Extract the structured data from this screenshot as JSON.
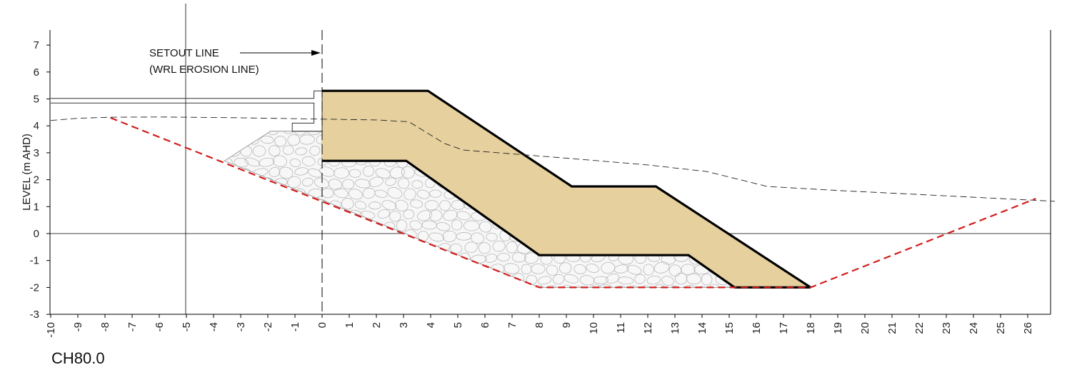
{
  "chart_data": {
    "type": "diagram",
    "section_label": "CH80.0",
    "ylabel": "LEVEL (m AHD)",
    "xlabel": "",
    "xlim": [
      -10,
      27
    ],
    "ylim": [
      -3,
      7.5
    ],
    "x_ticks": [
      -10,
      -9,
      -8,
      -7,
      -6,
      -5,
      -4,
      -3,
      -2,
      -1,
      0,
      1,
      2,
      3,
      4,
      5,
      6,
      7,
      8,
      9,
      10,
      11,
      12,
      13,
      14,
      15,
      16,
      17,
      18,
      19,
      20,
      21,
      22,
      23,
      24,
      25,
      26
    ],
    "y_ticks": [
      -3,
      -2,
      -1,
      0,
      1,
      2,
      3,
      4,
      5,
      6,
      7
    ],
    "annotations": {
      "setout_line": "SETOUT LINE",
      "erosion_line": "(WRL EROSION LINE)",
      "setout_x": 0
    },
    "reference_lines": {
      "horizontal_y": 0,
      "vertical_x": [
        -5,
        0
      ]
    },
    "colors": {
      "sand_fill": "#e6d09e",
      "rock_fill": "#f7f7f7",
      "excavation_line": "#d21e1e",
      "outline": "#000000"
    },
    "sand_layer": [
      [
        0,
        5.3
      ],
      [
        3.9,
        5.3
      ],
      [
        9.2,
        1.75
      ],
      [
        12.3,
        1.75
      ],
      [
        18,
        -2
      ],
      [
        15.2,
        -2
      ],
      [
        13.5,
        -0.8
      ],
      [
        8,
        -0.8
      ],
      [
        3.1,
        2.7
      ],
      [
        0,
        2.7
      ]
    ],
    "rock_layer": [
      [
        -3.6,
        2.7
      ],
      [
        -1.9,
        3.8
      ],
      [
        0,
        3.8
      ],
      [
        0,
        2.7
      ],
      [
        3.1,
        2.7
      ],
      [
        8,
        -0.8
      ],
      [
        13.5,
        -0.8
      ],
      [
        15.2,
        -2
      ],
      [
        8,
        -2
      ]
    ],
    "excavation_profile": [
      [
        -7.8,
        4.3
      ],
      [
        8,
        -2
      ],
      [
        18,
        -2
      ],
      [
        26.3,
        1.3
      ]
    ],
    "existing_ground_profile": [
      [
        -10,
        4.2
      ],
      [
        -9,
        4.28
      ],
      [
        -7.8,
        4.32
      ],
      [
        -6,
        4.33
      ],
      [
        -5,
        4.32
      ],
      [
        -3,
        4.3
      ],
      [
        0,
        4.25
      ],
      [
        2,
        4.22
      ],
      [
        3.2,
        4.15
      ],
      [
        4.5,
        3.35
      ],
      [
        5.2,
        3.1
      ],
      [
        6.5,
        3.0
      ],
      [
        9,
        2.8
      ],
      [
        12,
        2.55
      ],
      [
        14.2,
        2.3
      ],
      [
        16.4,
        1.75
      ],
      [
        19,
        1.6
      ],
      [
        22,
        1.45
      ],
      [
        25,
        1.3
      ],
      [
        27,
        1.2
      ]
    ],
    "seawall_outline": [
      [
        -10,
        5.02
      ],
      [
        -0.3,
        5.02
      ],
      [
        -0.3,
        5.3
      ],
      [
        0,
        5.3
      ],
      [
        0,
        3.8
      ],
      [
        -1.1,
        3.8
      ],
      [
        -1.1,
        4.1
      ],
      [
        -0.3,
        4.1
      ],
      [
        -0.3,
        4.85
      ],
      [
        -10,
        4.85
      ]
    ]
  }
}
